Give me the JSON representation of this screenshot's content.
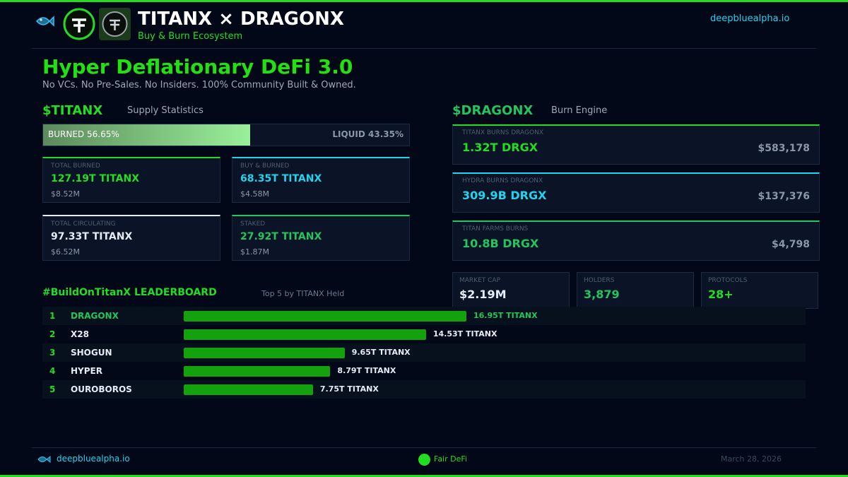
{
  "header": {
    "title": "TITANX × DRAGONX",
    "subtitle": "Buy & Burn Ecosystem",
    "site": "deepbluealpha.io"
  },
  "hero": {
    "title": "Hyper Deflationary DeFi 3.0",
    "subtitle": "No VCs. No Pre-Sales. No Insiders. 100% Community Built & Owned."
  },
  "titanx": {
    "heading": "$TITANX",
    "subheading": "Supply Statistics",
    "supply": [
      {
        "name": "BURNED",
        "value": 56.65,
        "label": "56.65%"
      },
      {
        "name": "LIQUID",
        "value": 43.35,
        "label": "43.35%"
      }
    ],
    "cards": [
      {
        "label": "TOTAL BURNED",
        "value": "127.19T TITANX",
        "usd": "$8.52M",
        "color": "#22dd22"
      },
      {
        "label": "BUY & BURNED",
        "value": "68.35T TITANX",
        "usd": "$4.58M",
        "color": "#22d3ee"
      },
      {
        "label": "TOTAL CIRCULATING",
        "value": "97.33T TITANX",
        "usd": "$6.52M",
        "color": "#e6ecf5"
      },
      {
        "label": "STAKED",
        "value": "27.92T TITANX",
        "usd": "$1.87M",
        "color": "#22c55e"
      }
    ]
  },
  "dragonx": {
    "heading": "$DRAGONX",
    "subheading": "Burn Engine",
    "burns": [
      {
        "label": "TITANX BURNS DRAGONX",
        "value": "1.32T DRGX",
        "usd": "$583,178",
        "color": "#22dd22"
      },
      {
        "label": "HYDRA BURNS DRAGONX",
        "value": "309.9B DRGX",
        "usd": "$137,376",
        "color": "#22d3ee"
      },
      {
        "label": "TITAN FARMS BURNS",
        "value": "10.8B DRGX",
        "usd": "$4,798",
        "color": "#22c55e"
      }
    ],
    "stats": [
      {
        "label": "MARKET CAP",
        "value": "$2.19M",
        "color": "#e6ecf5"
      },
      {
        "label": "HOLDERS",
        "value": "3,879",
        "color": "#22c55e"
      },
      {
        "label": "PROTOCOLS",
        "value": "28+",
        "color": "#22dd22"
      }
    ]
  },
  "leaderboard": {
    "title": "#BuildOnTitanX LEADERBOARD",
    "subtitle": "Top 5 by TITANX Held",
    "color": "#13a10e",
    "rows": [
      {
        "rank": 1,
        "name": "DRAGONX",
        "value": 16.95,
        "value_label": "16.95T TITANX"
      },
      {
        "rank": 2,
        "name": "X28",
        "value": 14.53,
        "value_label": "14.53T TITANX"
      },
      {
        "rank": 3,
        "name": "SHOGUN",
        "value": 9.65,
        "value_label": "9.65T TITANX"
      },
      {
        "rank": 4,
        "name": "HYPER",
        "value": 8.79,
        "value_label": "8.79T TITANX"
      },
      {
        "rank": 5,
        "name": "OUROBOROS",
        "value": 7.75,
        "value_label": "7.75T TITANX"
      }
    ]
  },
  "footer": {
    "site": "deepbluealpha.io",
    "badge": "Fair DeFi",
    "date": "March 28, 2026"
  }
}
